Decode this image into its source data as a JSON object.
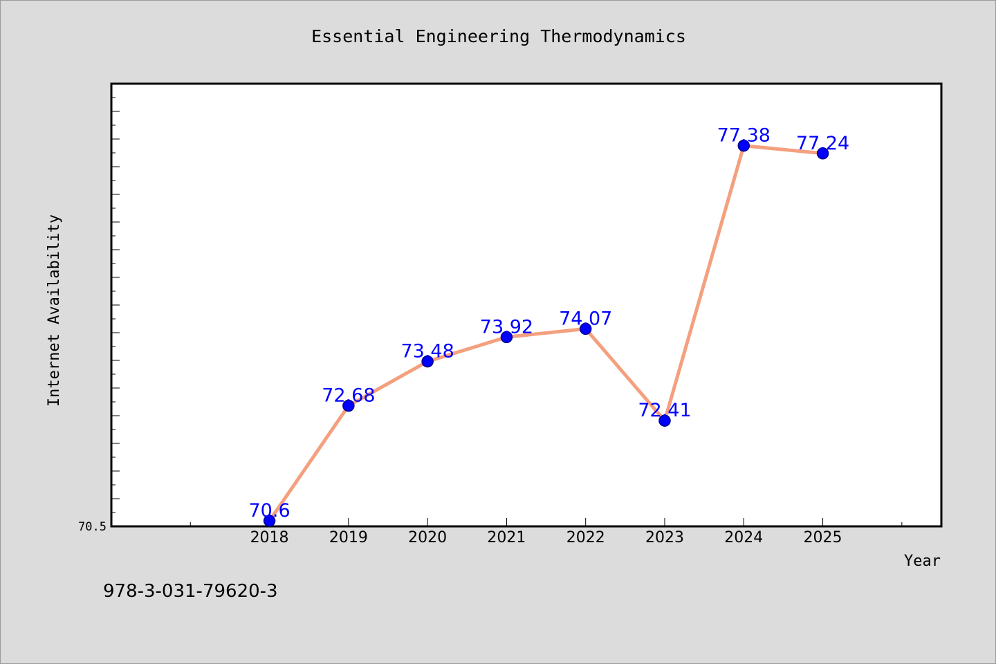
{
  "chart_data": {
    "type": "line",
    "title": "Essential Engineering Thermodynamics",
    "xlabel": "Year",
    "ylabel": "Internet Availability",
    "categories": [
      "2018",
      "2019",
      "2020",
      "2021",
      "2022",
      "2023",
      "2024",
      "2025"
    ],
    "x": [
      2018,
      2019,
      2020,
      2021,
      2022,
      2023,
      2024,
      2025
    ],
    "values": [
      70.6,
      72.68,
      73.48,
      73.92,
      74.07,
      72.41,
      77.38,
      77.24
    ],
    "data_labels": [
      "70.6",
      "72.68",
      "73.48",
      "73.92",
      "74.07",
      "72.41",
      "77.38",
      "77.24"
    ],
    "xlim": [
      2016,
      2026.5
    ],
    "ylim": [
      70.5,
      78.5
    ],
    "y_tick_labels": [
      "70.5"
    ],
    "grid": false,
    "legend": "none",
    "colors": {
      "line": "#f4a07f",
      "marker": "#0000ff",
      "marker_edge": "#00008b",
      "data_label": "#0000ff",
      "axes_background": "#ffffff",
      "figure_background": "#dcdcdc"
    }
  },
  "footer": {
    "code": "978-3-031-79620-3"
  }
}
